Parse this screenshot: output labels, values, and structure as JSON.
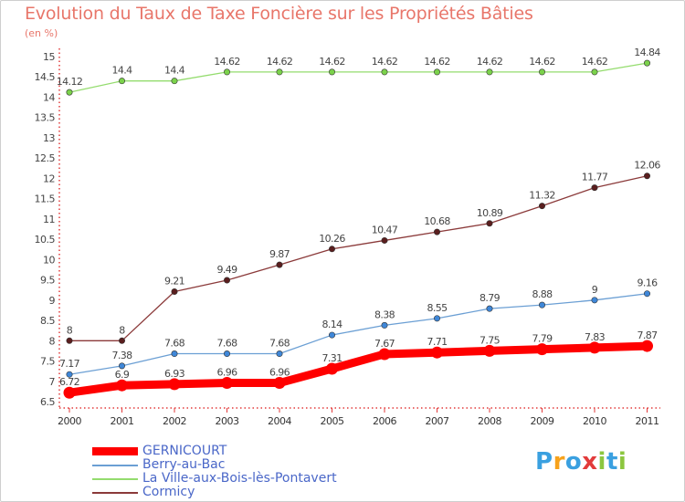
{
  "chart_data": {
    "type": "line",
    "title": "Evolution du Taux de Taxe Foncière sur les Propriétés Bâties",
    "subtitle": "(en %)",
    "categories": [
      "2000",
      "2001",
      "2002",
      "2003",
      "2004",
      "2005",
      "2006",
      "2007",
      "2008",
      "2009",
      "2010",
      "2011"
    ],
    "y_ticks": [
      "6.5",
      "7",
      "7.5",
      "8",
      "8.5",
      "9",
      "9.5",
      "10",
      "10.5",
      "11",
      "11.5",
      "12",
      "12.5",
      "13",
      "13.5",
      "14",
      "14.5",
      "15"
    ],
    "ylim": [
      6.5,
      15
    ],
    "grid": false,
    "legend_position": "bottom-left",
    "series": [
      {
        "name": "GERNICOURT",
        "color": "#ff0000",
        "thick": true,
        "values": [
          6.72,
          6.9,
          6.93,
          6.96,
          6.96,
          7.31,
          7.67,
          7.71,
          7.75,
          7.79,
          7.83,
          7.87
        ],
        "labels": [
          "6.72",
          "6.9",
          "6.93",
          "6.96",
          "6.96",
          "7.31",
          "7.67",
          "7.71",
          "7.75",
          "7.79",
          "7.83",
          "7.87"
        ]
      },
      {
        "name": "Berry-au-Bac",
        "color": "#6b9fd4",
        "marker": "#3f87d8",
        "thick": false,
        "values": [
          7.17,
          7.38,
          7.68,
          7.68,
          7.68,
          8.14,
          8.38,
          8.55,
          8.79,
          8.88,
          9.0,
          9.16
        ],
        "labels": [
          "7.17",
          "7.38",
          "7.68",
          "7.68",
          "7.68",
          "8.14",
          "8.38",
          "8.55",
          "8.79",
          "8.88",
          "9",
          "9.16"
        ]
      },
      {
        "name": "La Ville-aux-Bois-lès-Pontavert",
        "color": "#94dc6e",
        "marker": "#7bd24b",
        "thick": false,
        "values": [
          14.12,
          14.4,
          14.4,
          14.62,
          14.62,
          14.62,
          14.62,
          14.62,
          14.62,
          14.62,
          14.62,
          14.84
        ],
        "labels": [
          "14.12",
          "14.4",
          "14.4",
          "14.62",
          "14.62",
          "14.62",
          "14.62",
          "14.62",
          "14.62",
          "14.62",
          "14.62",
          "14.84"
        ]
      },
      {
        "name": "Cormicy",
        "color": "#8b3a3a",
        "marker": "#5a1e1e",
        "thick": false,
        "values": [
          8.0,
          8.0,
          9.21,
          9.49,
          9.87,
          10.26,
          10.47,
          10.68,
          10.89,
          11.32,
          11.77,
          12.06
        ],
        "labels": [
          "8",
          "8",
          "9.21",
          "9.49",
          "9.87",
          "10.26",
          "10.47",
          "10.68",
          "10.89",
          "11.32",
          "11.77",
          "12.06"
        ]
      }
    ]
  },
  "logo": {
    "text": "Proxiti",
    "letters": [
      "P",
      "r",
      "o",
      "x",
      "i",
      "t",
      "i"
    ],
    "colors": [
      "#3aa0e0",
      "#f7a21b",
      "#3aa0e0",
      "#e23b3b",
      "#8cc63f",
      "#3aa0e0",
      "#8cc63f"
    ]
  }
}
